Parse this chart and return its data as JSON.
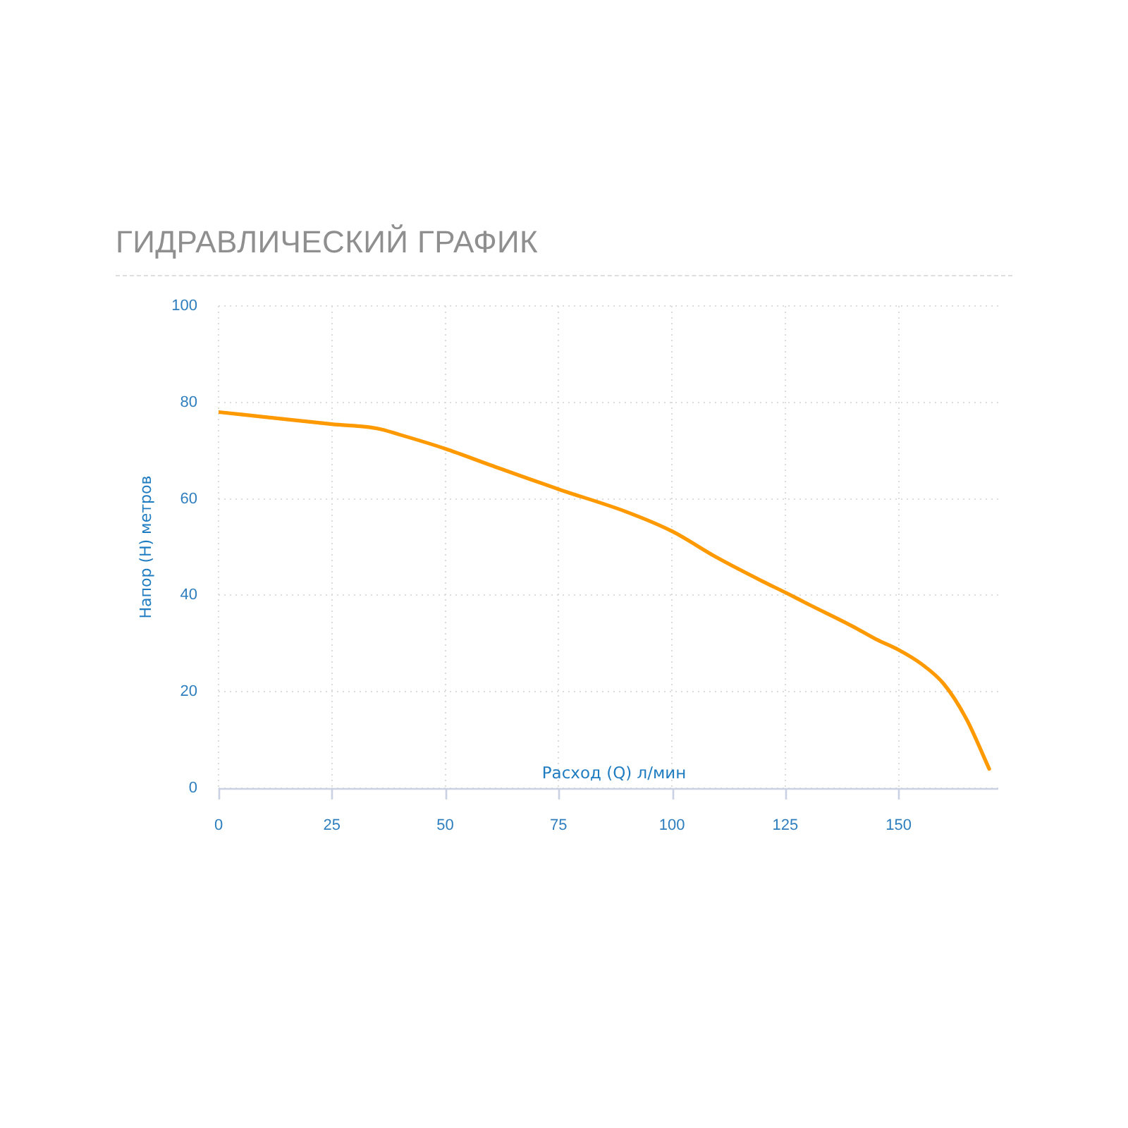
{
  "chart_data": {
    "type": "line",
    "title": "ГИДРАВЛИЧЕСКИЙ ГРАФИК",
    "xlabel": "Расход (Q) л/мин",
    "ylabel": "Напор (Н) метров",
    "x": [
      0,
      10,
      25,
      35,
      40,
      50,
      60,
      75,
      90,
      100,
      110,
      120,
      125,
      130,
      140,
      145,
      150,
      155,
      160,
      165,
      170
    ],
    "values": [
      78,
      77,
      75.5,
      74.6,
      73.3,
      70.4,
      67,
      62,
      57.3,
      53.3,
      47.8,
      42.9,
      40.6,
      38.2,
      33.5,
      30.9,
      28.7,
      25.8,
      21.6,
      14.3,
      4
    ],
    "color": "#ff9900",
    "xlim": [
      0,
      172
    ],
    "xticks": [
      0,
      25,
      50,
      75,
      100,
      125,
      150
    ],
    "ylim": [
      0,
      100
    ],
    "yticks": [
      0,
      20,
      40,
      60,
      80,
      100
    ],
    "grid": true,
    "line_style": "solid"
  }
}
